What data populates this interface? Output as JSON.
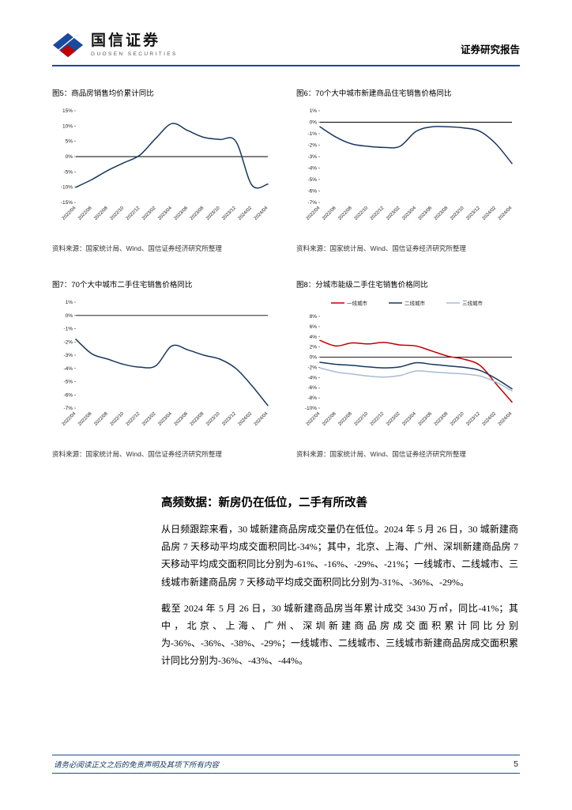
{
  "header": {
    "brand_cn": "国信证券",
    "brand_en": "GUOSEN SECURITIES",
    "report_type": "证券研究报告"
  },
  "colors": {
    "brand_blue": "#1B4A9C",
    "line_navy": "#17375E",
    "line_red": "#C00000",
    "line_light": "#A9BBD3"
  },
  "chart_data": [
    {
      "type": "line",
      "title": "图5：商品房销售均价累计同比",
      "source": "资料来源：国家统计局、Wind、国信证券经济研究所整理",
      "categories": [
        "2022/04",
        "2022/06",
        "2022/08",
        "2022/10",
        "2022/12",
        "2023/02",
        "2023/04",
        "2023/06",
        "2023/08",
        "2023/10",
        "2023/12",
        "2024/02",
        "2024/04"
      ],
      "series": [
        {
          "name": "商品房销售均价累计同比",
          "color": "#17375E",
          "values": [
            -10,
            -7.5,
            -4.5,
            -2,
            0.5,
            6,
            10.8,
            8.5,
            6.3,
            5.6,
            5,
            -9.3,
            -9
          ]
        }
      ],
      "ylim": [
        -15,
        15
      ],
      "yticks": [
        15,
        10,
        5,
        0,
        -5,
        -10,
        -15
      ],
      "tick_suffix": "%",
      "grid": false
    },
    {
      "type": "line",
      "title": "图6：70个大中城市新建商品住宅销售价格同比",
      "source": "资料来源：国家统计局、Wind、国信证券经济研究所整理",
      "categories": [
        "2022/04",
        "2022/06",
        "2022/08",
        "2022/10",
        "2022/12",
        "2023/02",
        "2023/04",
        "2023/06",
        "2023/08",
        "2023/10",
        "2023/12",
        "2024/02",
        "2024/04"
      ],
      "series": [
        {
          "name": "70个大中城市新建商品住宅销售价格同比",
          "color": "#17375E",
          "values": [
            -0.4,
            -1.3,
            -1.9,
            -2.1,
            -2.2,
            -2.1,
            -0.8,
            -0.4,
            -0.4,
            -0.5,
            -0.8,
            -1.9,
            -3.6
          ]
        }
      ],
      "ylim": [
        -7,
        1
      ],
      "yticks": [
        1,
        0,
        -1,
        -2,
        -3,
        -4,
        -5,
        -6,
        -7
      ],
      "tick_suffix": "%",
      "grid": false
    },
    {
      "type": "line",
      "title": "图7：70个大中城市二手住宅销售价格同比",
      "source": "资料来源：国家统计局、Wind、国信证券经济研究所整理",
      "categories": [
        "2022/04",
        "2022/06",
        "2022/08",
        "2022/10",
        "2022/12",
        "2023/02",
        "2023/04",
        "2023/06",
        "2023/08",
        "2023/10",
        "2023/12",
        "2024/02",
        "2024/04"
      ],
      "series": [
        {
          "name": "70个大中城市二手住宅销售价格同比",
          "color": "#17375E",
          "values": [
            -1.8,
            -2.9,
            -3.3,
            -3.7,
            -3.9,
            -3.8,
            -2.3,
            -2.6,
            -3.0,
            -3.3,
            -4.0,
            -5.3,
            -6.8
          ]
        }
      ],
      "ylim": [
        -7,
        1
      ],
      "yticks": [
        1,
        0,
        -1,
        -2,
        -3,
        -4,
        -5,
        -6,
        -7
      ],
      "tick_suffix": "%",
      "grid": false
    },
    {
      "type": "line",
      "title": "图8：分城市能级二手住宅销售价格同比",
      "source": "资料来源：国家统计局、Wind、国信证券经济研究所整理",
      "categories": [
        "2022/04",
        "2022/06",
        "2022/08",
        "2022/10",
        "2022/12",
        "2023/02",
        "2023/04",
        "2023/06",
        "2023/08",
        "2023/10",
        "2023/12",
        "2024/02",
        "2024/04"
      ],
      "series": [
        {
          "name": "一线城市",
          "color": "#C00000",
          "values": [
            3.3,
            2.2,
            2.8,
            2.6,
            2.9,
            2.4,
            2.2,
            1.2,
            0.2,
            -0.4,
            -1.6,
            -5.2,
            -8.8
          ]
        },
        {
          "name": "二线城市",
          "color": "#17375E",
          "values": [
            -1.0,
            -1.4,
            -1.6,
            -1.9,
            -2.1,
            -1.9,
            -1.1,
            -1.4,
            -1.7,
            -2.0,
            -2.6,
            -4.2,
            -6.2
          ]
        },
        {
          "name": "三线城市",
          "color": "#A9BBD3",
          "values": [
            -2.1,
            -2.9,
            -3.3,
            -3.7,
            -3.9,
            -3.6,
            -2.7,
            -2.9,
            -3.1,
            -3.3,
            -3.7,
            -4.9,
            -6.6
          ]
        }
      ],
      "ylim": [
        -10,
        8
      ],
      "yticks": [
        8,
        6,
        4,
        2,
        0,
        -2,
        -4,
        -6,
        -8,
        -10
      ],
      "tick_suffix": "%",
      "legend_position": "top",
      "grid": false
    }
  ],
  "section": {
    "heading": "高频数据：新房仍在低位，二手有所改善",
    "paragraphs": [
      "从日频跟踪来看，30 城新建商品房成交量仍在低位。2024 年 5 月 26 日，30 城新建商品房 7 天移动平均成交面积同比-34%；其中，北京、上海、广州、深圳新建商品房 7 天移动平均成交面积同比分别为-61%、-16%、-29%、-21%；一线城市、二线城市、三线城市新建商品房 7 天移动平均成交面积同比分别为-31%、-36%、-29%。",
      "截至 2024 年 5 月 26 日，30 城新建商品房当年累计成交 3430 万㎡，同比-41%；其中，北京、上海、广州、深圳新建商品房成交面积累计同比分别为-36%、-36%、-38%、-29%；一线城市、二线城市、三线城市新建商品房成交面积累计同比分别为-36%、-43%、-44%。"
    ]
  },
  "footer": {
    "disclaimer": "请务必阅读正文之后的免责声明及其项下所有内容",
    "page_number": "5"
  }
}
